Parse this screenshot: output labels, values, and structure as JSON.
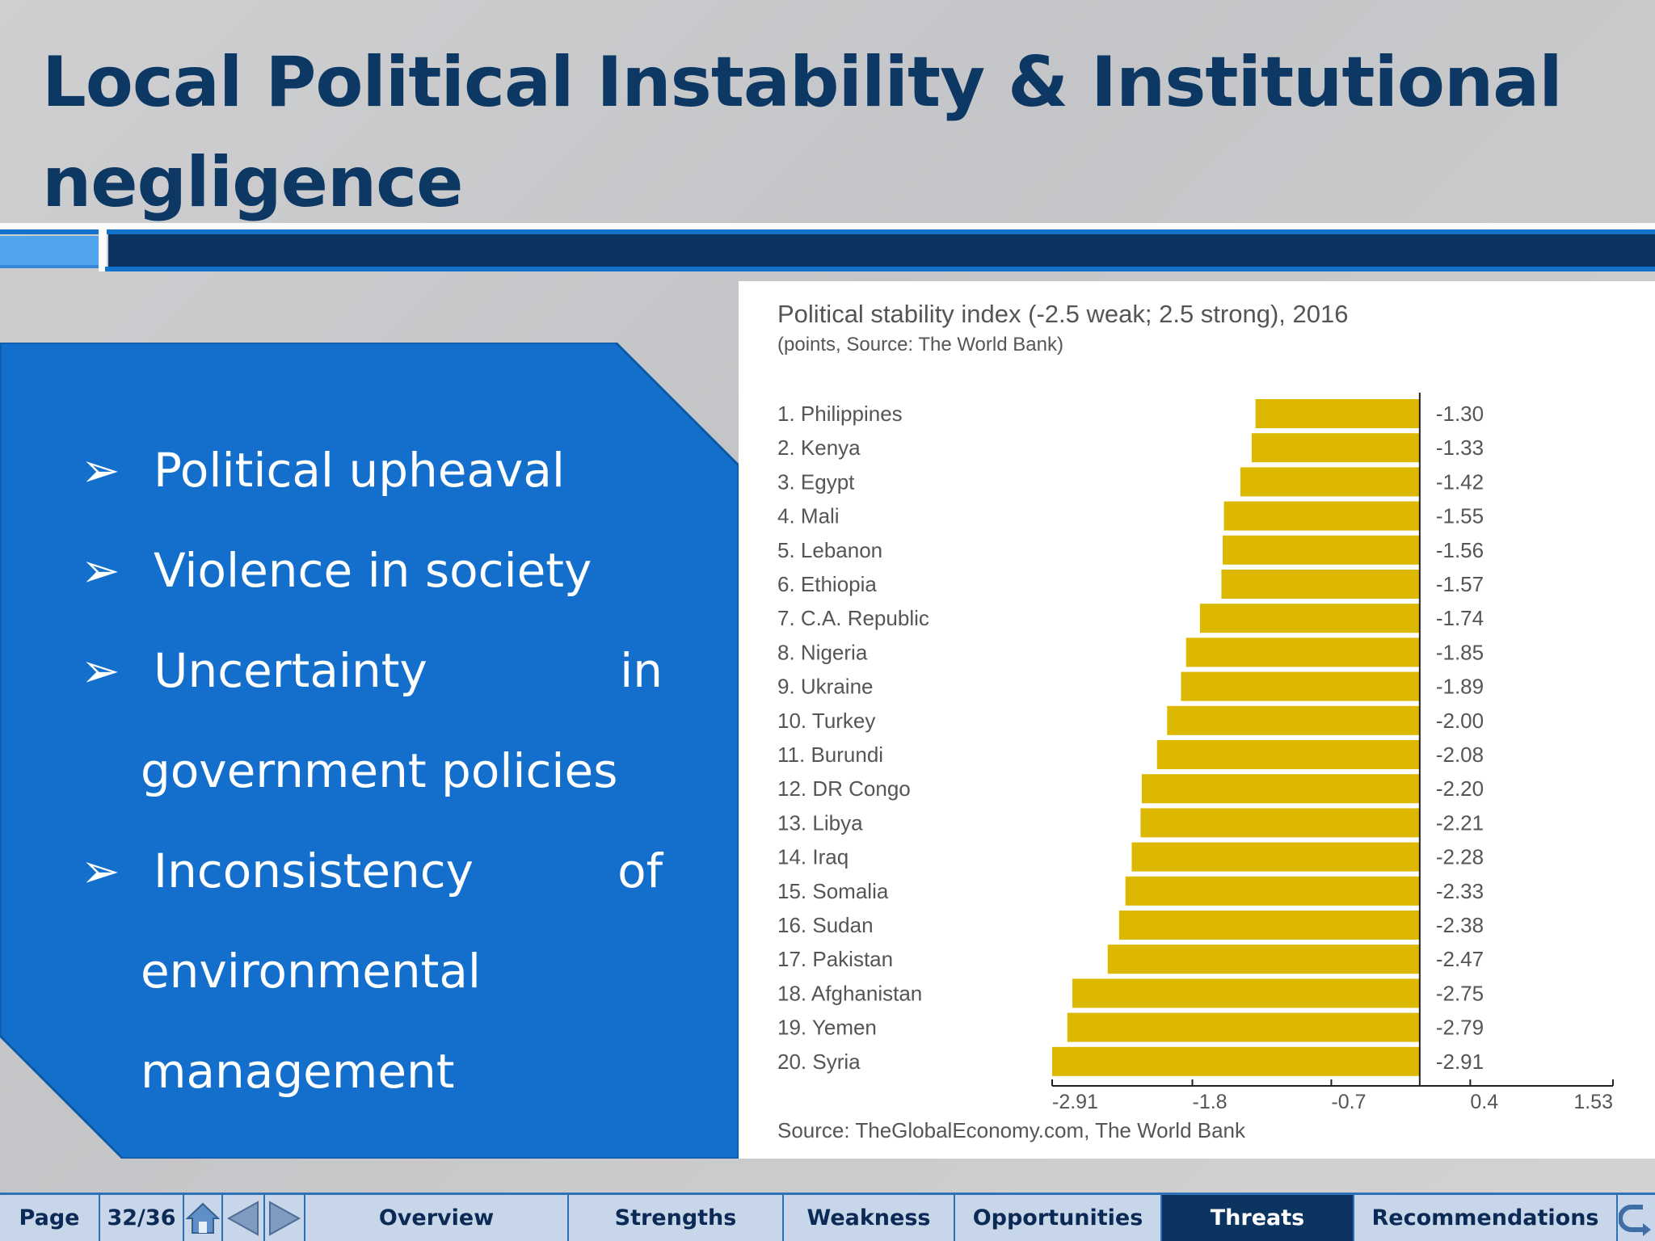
{
  "slide": {
    "title": "Local Political Instability & Institutional negligence",
    "bullets": [
      {
        "text": "Political upheaval"
      },
      {
        "text": "Violence in society"
      },
      {
        "first": "Uncertainty",
        "last": "in",
        "continuation": "government policies"
      },
      {
        "first": "Inconsistency",
        "last": "of",
        "continuation": [
          "environmental",
          "management"
        ]
      }
    ]
  },
  "chart_data": {
    "type": "bar",
    "orientation": "horizontal",
    "title": "Political stability index (-2.5 weak; 2.5 strong), 2016",
    "subtitle": "(points, Source: The World Bank)",
    "source": "Source: TheGlobalEconomy.com, The World Bank",
    "categories": [
      "1. Philippines",
      "2. Kenya",
      "3. Egypt",
      "4. Mali",
      "5. Lebanon",
      "6. Ethiopia",
      "7. C.A. Republic",
      "8. Nigeria",
      "9. Ukraine",
      "10. Turkey",
      "11. Burundi",
      "12. DR Congo",
      "13. Libya",
      "14. Iraq",
      "15. Somalia",
      "16. Sudan",
      "17. Pakistan",
      "18. Afghanistan",
      "19. Yemen",
      "20. Syria"
    ],
    "values": [
      -1.3,
      -1.33,
      -1.42,
      -1.55,
      -1.56,
      -1.57,
      -1.74,
      -1.85,
      -1.89,
      -2.0,
      -2.08,
      -2.2,
      -2.21,
      -2.28,
      -2.33,
      -2.38,
      -2.47,
      -2.75,
      -2.79,
      -2.91
    ],
    "value_labels": [
      "-1.30",
      "-1.33",
      "-1.42",
      "-1.55",
      "-1.56",
      "-1.57",
      "-1.74",
      "-1.85",
      "-1.89",
      "-2.00",
      "-2.08",
      "-2.20",
      "-2.21",
      "-2.28",
      "-2.33",
      "-2.38",
      "-2.47",
      "-2.75",
      "-2.79",
      "-2.91"
    ],
    "xticks": [
      -2.91,
      -1.8,
      -0.7,
      0.4,
      1.53
    ],
    "xtick_labels": [
      "-2.91",
      "-1.8",
      "-0.7",
      "0.4",
      "1.53"
    ],
    "xlim": [
      -2.91,
      1.53
    ],
    "bar_color": "#dcb900"
  },
  "navbar": {
    "page_label": "Page",
    "page_number": "32/36",
    "tabs": [
      {
        "label": "Overview",
        "active": false
      },
      {
        "label": "Strengths",
        "active": false
      },
      {
        "label": "Weakness",
        "active": false
      },
      {
        "label": "Opportunities",
        "active": false
      },
      {
        "label": "Threats",
        "active": true
      },
      {
        "label": "Recommendations",
        "active": false
      }
    ],
    "icons": [
      "home-icon",
      "prev-arrow-icon",
      "next-arrow-icon",
      "return-icon"
    ]
  }
}
